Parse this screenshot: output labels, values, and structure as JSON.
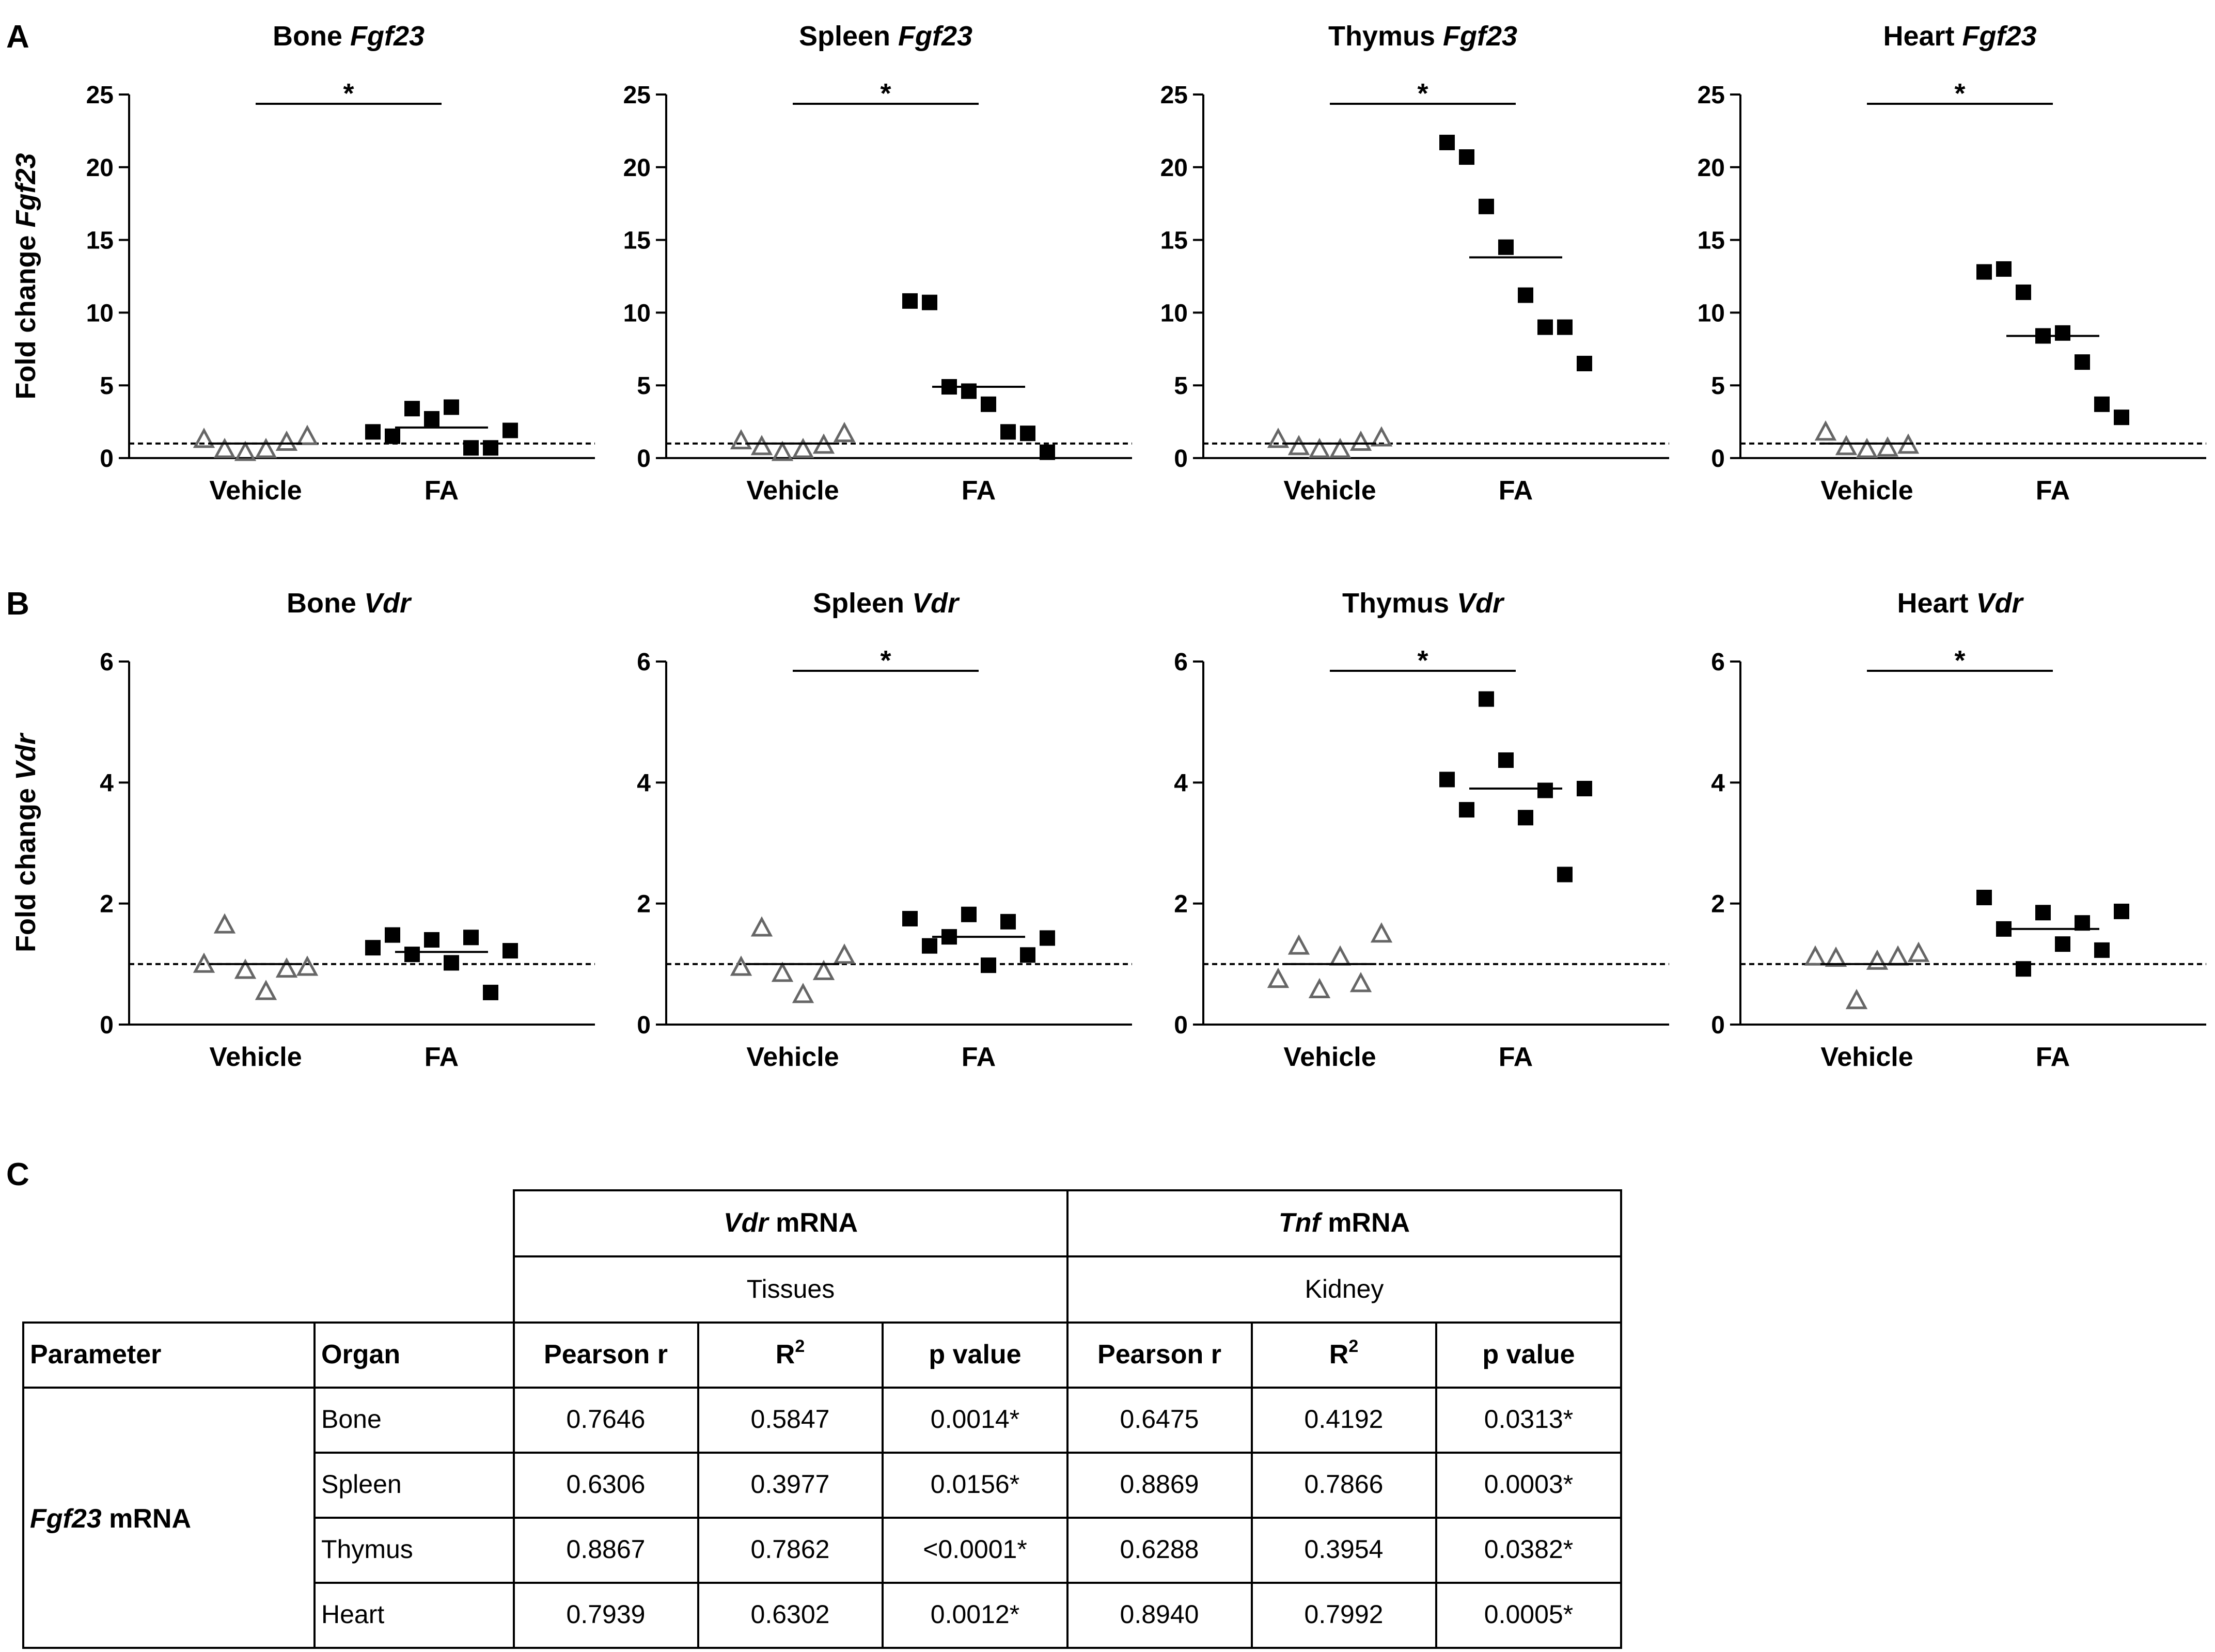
{
  "figure": {
    "panel_labels": {
      "A": "A",
      "B": "B",
      "C": "C"
    },
    "group_labels": [
      "Vehicle",
      "FA"
    ],
    "sig_marker": "*",
    "colors": {
      "vehicle": "#666666",
      "fa": "#000000",
      "axis": "#000000"
    }
  },
  "chart_data": [
    {
      "type": "scatter",
      "row": "A",
      "title_prefix": "Bone",
      "title_gene": "Fgf23",
      "ylabel_prefix": "Fold change",
      "ylabel_gene": "Fgf23",
      "ylim": [
        0,
        25
      ],
      "yticks": [
        0,
        5,
        10,
        15,
        20,
        25
      ],
      "reference_line": 1,
      "significant": true,
      "vehicle": [
        1.3,
        0.6,
        0.4,
        0.6,
        1.1,
        1.5
      ],
      "vehicle_mean": 1.0,
      "fa": [
        1.8,
        1.5,
        3.4,
        2.7,
        3.5,
        0.7,
        0.7,
        1.9
      ],
      "fa_mean": 2.1
    },
    {
      "type": "scatter",
      "row": "A",
      "title_prefix": "Spleen",
      "title_gene": "Fgf23",
      "ylim": [
        0,
        25
      ],
      "yticks": [
        0,
        5,
        10,
        15,
        20,
        25
      ],
      "reference_line": 1,
      "significant": true,
      "vehicle": [
        1.2,
        0.8,
        0.4,
        0.6,
        0.9,
        1.7
      ],
      "vehicle_mean": 1.0,
      "fa": [
        10.8,
        10.7,
        4.9,
        4.6,
        3.7,
        1.8,
        1.7,
        0.4
      ],
      "fa_mean": 4.9
    },
    {
      "type": "scatter",
      "row": "A",
      "title_prefix": "Thymus",
      "title_gene": "Fgf23",
      "ylim": [
        0,
        25
      ],
      "yticks": [
        0,
        5,
        10,
        15,
        20,
        25
      ],
      "reference_line": 1,
      "significant": true,
      "vehicle": [
        1.3,
        0.8,
        0.6,
        0.6,
        1.1,
        1.4
      ],
      "vehicle_mean": 1.0,
      "fa": [
        21.7,
        20.7,
        17.3,
        14.5,
        11.2,
        9.0,
        9.0,
        6.5
      ],
      "fa_mean": 13.8
    },
    {
      "type": "scatter",
      "row": "A",
      "title_prefix": "Heart",
      "title_gene": "Fgf23",
      "ylim": [
        0,
        25
      ],
      "yticks": [
        0,
        5,
        10,
        15,
        20,
        25
      ],
      "reference_line": 1,
      "significant": true,
      "vehicle": [
        1.8,
        0.8,
        0.6,
        0.7,
        0.9
      ],
      "vehicle_mean": 1.0,
      "fa": [
        12.8,
        13.0,
        11.4,
        8.4,
        8.6,
        6.6,
        3.7,
        2.8
      ],
      "fa_mean": 8.4
    },
    {
      "type": "scatter",
      "row": "B",
      "title_prefix": "Bone",
      "title_gene": "Vdr",
      "ylabel_prefix": "Fold change",
      "ylabel_gene": "Vdr",
      "ylim": [
        0,
        6
      ],
      "yticks": [
        0,
        2,
        4,
        6
      ],
      "reference_line": 1,
      "significant": false,
      "vehicle": [
        1.0,
        1.65,
        0.9,
        0.55,
        0.92,
        0.95
      ],
      "vehicle_mean": 1.0,
      "fa": [
        1.27,
        1.48,
        1.16,
        1.4,
        1.02,
        1.44,
        0.53,
        1.22
      ],
      "fa_mean": 1.2
    },
    {
      "type": "scatter",
      "row": "B",
      "title_prefix": "Spleen",
      "title_gene": "Vdr",
      "ylim": [
        0,
        6
      ],
      "yticks": [
        0,
        2,
        4,
        6
      ],
      "reference_line": 1,
      "significant": true,
      "vehicle": [
        0.95,
        1.6,
        0.85,
        0.5,
        0.88,
        1.15
      ],
      "vehicle_mean": 1.0,
      "fa": [
        1.75,
        1.3,
        1.45,
        1.82,
        0.98,
        1.7,
        1.15,
        1.43
      ],
      "fa_mean": 1.45
    },
    {
      "type": "scatter",
      "row": "B",
      "title_prefix": "Thymus",
      "title_gene": "Vdr",
      "ylim": [
        0,
        6
      ],
      "yticks": [
        0,
        2,
        4,
        6
      ],
      "reference_line": 1,
      "significant": true,
      "vehicle": [
        0.75,
        1.3,
        0.58,
        1.12,
        0.68,
        1.5
      ],
      "vehicle_mean": 1.0,
      "fa": [
        4.05,
        3.55,
        5.38,
        4.37,
        3.42,
        3.87,
        2.48,
        3.9
      ],
      "fa_mean": 3.9
    },
    {
      "type": "scatter",
      "row": "B",
      "title_prefix": "Heart",
      "title_gene": "Vdr",
      "ylim": [
        0,
        6
      ],
      "yticks": [
        0,
        2,
        4,
        6
      ],
      "reference_line": 1,
      "significant": true,
      "vehicle": [
        1.12,
        1.1,
        0.4,
        1.05,
        1.12,
        1.18
      ],
      "vehicle_mean": 1.0,
      "fa": [
        2.1,
        1.58,
        0.92,
        1.85,
        1.33,
        1.68,
        1.23,
        1.87
      ],
      "fa_mean": 1.58
    }
  ],
  "table": {
    "header_groups": [
      {
        "gene": "Vdr",
        "suffix": " mRNA",
        "sub": "Tissues"
      },
      {
        "gene": "Tnf",
        "suffix": " mRNA",
        "sub": "Kidney"
      }
    ],
    "columns": [
      "Parameter",
      "Organ",
      "Pearson r",
      "R",
      "p value",
      "Pearson r",
      "R",
      "p value"
    ],
    "r2_superscript": "2",
    "parameter_gene": "Fgf23",
    "parameter_suffix": " mRNA",
    "rows": [
      {
        "organ": "Bone",
        "values": [
          "0.7646",
          "0.5847",
          "0.0014*",
          "0.6475",
          "0.4192",
          "0.0313*"
        ]
      },
      {
        "organ": "Spleen",
        "values": [
          "0.6306",
          "0.3977",
          "0.0156*",
          "0.8869",
          "0.7866",
          "0.0003*"
        ]
      },
      {
        "organ": "Thymus",
        "values": [
          "0.8867",
          "0.7862",
          "<0.0001*",
          "0.6288",
          "0.3954",
          "0.0382*"
        ]
      },
      {
        "organ": "Heart",
        "values": [
          "0.7939",
          "0.6302",
          "0.0012*",
          "0.8940",
          "0.7992",
          "0.0005*"
        ]
      }
    ]
  }
}
